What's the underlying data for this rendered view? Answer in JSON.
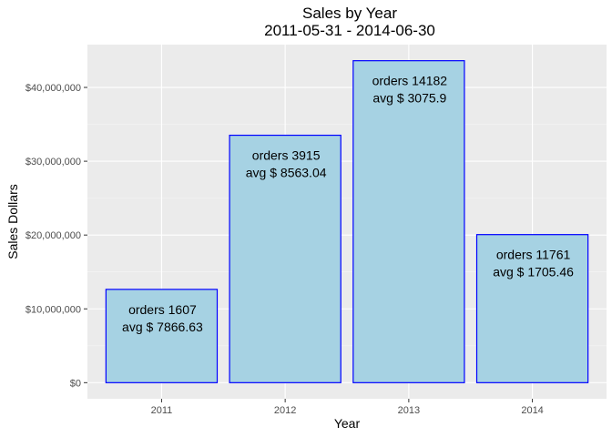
{
  "chart_data": {
    "type": "bar",
    "title": "Sales by Year",
    "subtitle": "2011-05-31  -  2014-06-30",
    "xlabel": "Year",
    "ylabel": "Sales Dollars",
    "categories": [
      "2011",
      "2012",
      "2013",
      "2014"
    ],
    "values": [
      12640000,
      33520000,
      43620000,
      20060000
    ],
    "ylim": [
      -2180000,
      45800000
    ],
    "yticks": [
      0,
      10000000,
      20000000,
      30000000,
      40000000
    ],
    "ytick_labels": [
      "$0",
      "$10,000,000",
      "$20,000,000",
      "$30,000,000",
      "$40,000,000"
    ],
    "annotations": [
      {
        "orders": "orders 1607",
        "avg": "avg $  7866.63"
      },
      {
        "orders": "orders 3915",
        "avg": "avg $  8563.04"
      },
      {
        "orders": "orders 14182",
        "avg": "avg $  3075.9"
      },
      {
        "orders": "orders 11761",
        "avg": "avg $  1705.46"
      }
    ],
    "grid": true,
    "bar_fill": "#a6d2e3",
    "bar_stroke": "#0000ff",
    "panel_bg": "#ebebeb",
    "grid_major": "#ffffff",
    "legend": "none"
  }
}
